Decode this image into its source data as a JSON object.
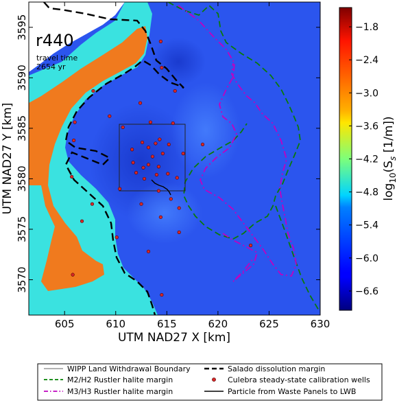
{
  "figure": {
    "panel_label": "r440",
    "travel_time_label": "travel time",
    "travel_time_value": "2654 yr",
    "xlabel": "UTM NAD27 X [km]",
    "ylabel": "UTM NAD27 Y [km]",
    "colorbar_label_prefix": "log",
    "colorbar_label_sub": "10",
    "colorbar_label_rest": "(S",
    "colorbar_label_sub2": "s",
    "colorbar_label_units": " [1/m])"
  },
  "chart_data": {
    "type": "heatmap",
    "x_ticks": [
      "605",
      "610",
      "615",
      "620",
      "625",
      "630"
    ],
    "y_ticks": [
      "3570",
      "3575",
      "3580",
      "3585",
      "3590",
      "3595"
    ],
    "x_tick_values": [
      605,
      610,
      615,
      620,
      625,
      630
    ],
    "y_tick_values": [
      3570,
      3575,
      3580,
      3585,
      3590,
      3595
    ],
    "xlim": [
      601.5,
      630
    ],
    "ylim": [
      3566.5,
      3597.5
    ],
    "colorbar_ticks": [
      "−1.8",
      "−2.4",
      "−3.0",
      "−3.6",
      "−4.2",
      "−4.8",
      "−5.4",
      "−6.0",
      "−6.6"
    ],
    "colorbar_tick_values": [
      -1.8,
      -2.4,
      -3.0,
      -3.6,
      -4.2,
      -4.8,
      -5.4,
      -6.0,
      -6.6
    ],
    "colorbar_range": [
      -6.95,
      -1.45
    ],
    "colormap": "jet",
    "land_withdrawal_boundary": {
      "x": [
        610.6,
        616.9
      ],
      "y": [
        3578.9,
        3585.4
      ]
    },
    "calibration_wells": [
      [
        607.8,
        3588.7
      ],
      [
        609.4,
        3586.2
      ],
      [
        610.1,
        3574.2
      ],
      [
        610.4,
        3579.0
      ],
      [
        610.7,
        3585.1
      ],
      [
        611.6,
        3582.9
      ],
      [
        612.4,
        3587.5
      ],
      [
        612.6,
        3583.6
      ],
      [
        612.7,
        3581.1
      ],
      [
        612.8,
        3580.0
      ],
      [
        612.5,
        3577.5
      ],
      [
        613.2,
        3572.8
      ],
      [
        613.2,
        3583.1
      ],
      [
        613.2,
        3581.4
      ],
      [
        613.4,
        3585.6
      ],
      [
        613.6,
        3582.2
      ],
      [
        613.9,
        3583.5
      ],
      [
        614.0,
        3580.4
      ],
      [
        614.2,
        3578.8
      ],
      [
        614.2,
        3581.2
      ],
      [
        614.4,
        3593.6
      ],
      [
        614.5,
        3591.0
      ],
      [
        614.5,
        3568.5
      ],
      [
        614.6,
        3582.5
      ],
      [
        615.1,
        3580.5
      ],
      [
        615.2,
        3583.4
      ],
      [
        615.6,
        3585.5
      ],
      [
        615.8,
        3588.7
      ],
      [
        616.2,
        3577.1
      ],
      [
        616.2,
        3574.7
      ],
      [
        616.6,
        3582.5
      ],
      [
        618.5,
        3583.4
      ],
      [
        623.2,
        3573.4
      ],
      [
        616.0,
        3580.1
      ],
      [
        612.0,
        3580.6
      ],
      [
        614.4,
        3576.2
      ],
      [
        615.4,
        3578.0
      ],
      [
        614.3,
        3583.9
      ],
      [
        611.7,
        3581.6
      ],
      [
        605.8,
        3570.5
      ],
      [
        606.7,
        3575.8
      ],
      [
        607.7,
        3577.5
      ],
      [
        605.7,
        3580.2
      ],
      [
        606.0,
        3585.6
      ],
      [
        605.9,
        3583.8
      ]
    ]
  },
  "legend": {
    "items": [
      {
        "label": "WIPP Land Withdrawal Boundary",
        "color": "#333333",
        "style": "solid-thin"
      },
      {
        "label": "Salado dissolution margin",
        "color": "#000000",
        "style": "dashed-thick"
      },
      {
        "label": "M2/H2 Rustler halite margin",
        "color": "#008000",
        "style": "dashed"
      },
      {
        "label": "Culebra steady-state calibration wells",
        "color": "#d62728",
        "style": "dot"
      },
      {
        "label": "M3/H3 Rustler halite margin",
        "color": "#bf00bf",
        "style": "dashdot"
      },
      {
        "label": "Particle from Waste Panels to LWB",
        "color": "#000000",
        "style": "solid"
      }
    ]
  },
  "colors": {
    "deep_blue": "#1a3fd6",
    "mid_blue": "#2d5cf0",
    "cyan": "#38e6e0",
    "orange": "#f07a1e"
  }
}
